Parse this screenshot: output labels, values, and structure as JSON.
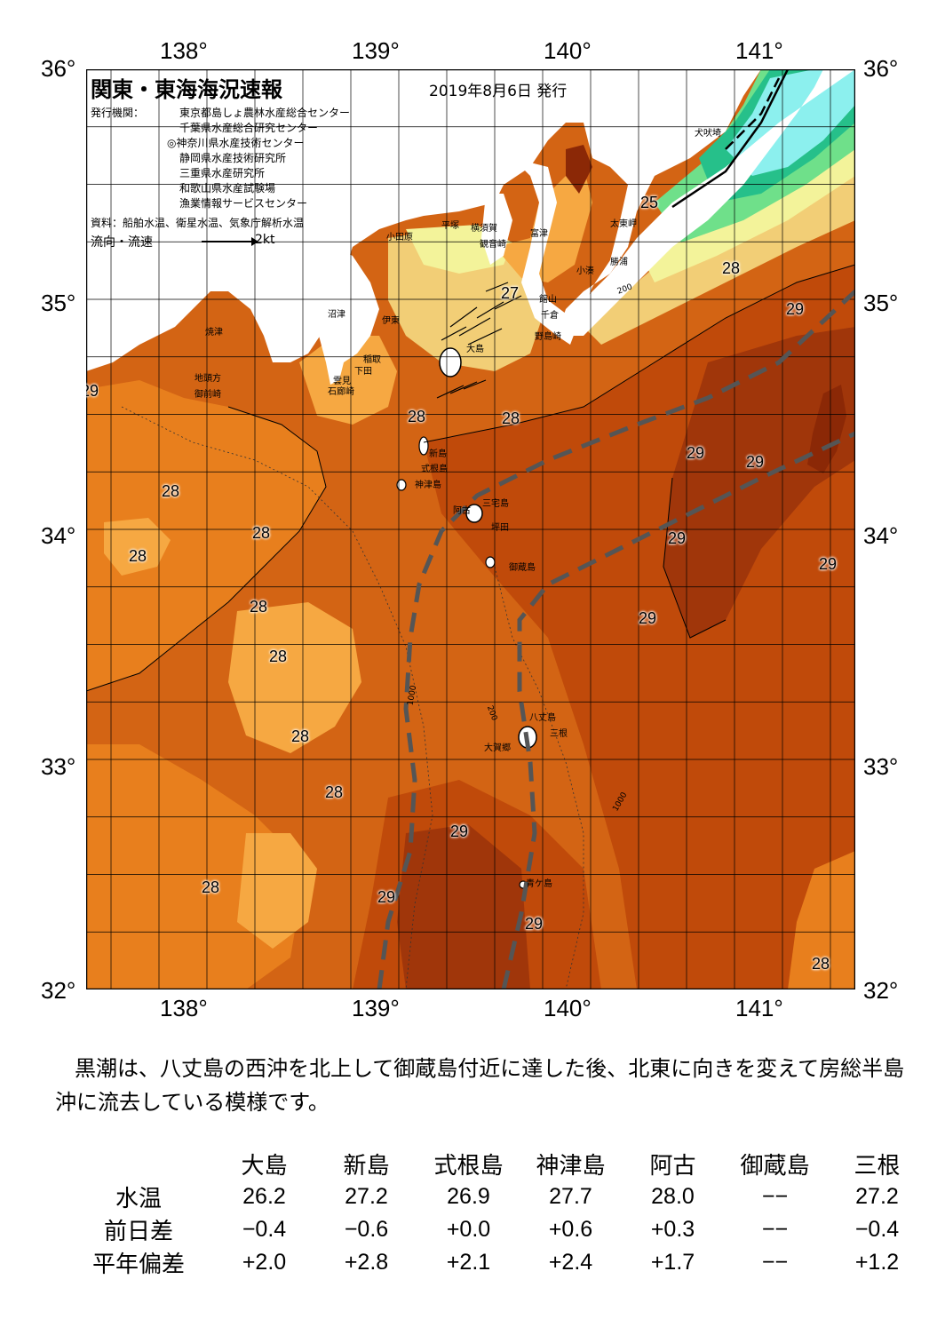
{
  "header": {
    "title": "関東・東海海況速報",
    "date": "2019年8月6日 発行",
    "agencies_label": "発行機関：",
    "agencies": [
      "東京都島しょ農林水産総合センター",
      "千葉県水産総合研究センター",
      "◎神奈川県水産技術センター",
      "静岡県水産技術研究所",
      "三重県水産研究所",
      "和歌山県水産試験場",
      "漁業情報サービスセンター"
    ],
    "source": "資料：船舶水温、衛星水温、気象庁解析水温",
    "flow_label": "流向・流速",
    "flow_scale": "2kt"
  },
  "axes": {
    "lon_labels": [
      "138°",
      "139°",
      "140°",
      "141°"
    ],
    "lat_labels": [
      "36°",
      "35°",
      "34°",
      "33°",
      "32°"
    ]
  },
  "colors": {
    "t24": "#26c08a",
    "t25": "#6fe08a",
    "t26": "#f3f39a",
    "t27": "#f2ce76",
    "t27_5": "#f6a842",
    "t28": "#e87f1d",
    "t28_5": "#d36414",
    "t29": "#c04a0a",
    "t29_5": "#a0360a",
    "t30": "#8b2806",
    "land": "#ffffff",
    "cold": "#8cf0ee",
    "kuroshio_axis": "#555555"
  },
  "places": [
    "犬吠埼",
    "太東岬",
    "勝浦",
    "小湊",
    "館山",
    "千倉",
    "野島崎",
    "富津",
    "観音崎",
    "横須賀",
    "平塚",
    "小田原",
    "沼津",
    "伊東",
    "焼津",
    "地頭方",
    "御前崎",
    "稲取",
    "下田",
    "雲見",
    "石廊崎",
    "大島",
    "新島",
    "式根島",
    "神津島",
    "三宅島",
    "阿古",
    "坪田",
    "御蔵島",
    "八丈島",
    "三根",
    "大賀郷",
    "青ケ島"
  ],
  "isotherm_labels": [
    "25",
    "27",
    "28",
    "28",
    "28",
    "28",
    "28",
    "28",
    "28",
    "28",
    "28",
    "28",
    "28",
    "28",
    "29",
    "29",
    "29",
    "29",
    "29",
    "29",
    "29",
    "29",
    "29",
    "29"
  ],
  "depth_labels": [
    "200",
    "1000"
  ],
  "summary": "黒潮は、八丈島の西沖を北上して御蔵島付近に達した後、北東に向きを変えて房総半島沖に流去している模様です。",
  "table": {
    "columns": [
      "大島",
      "新島",
      "式根島",
      "神津島",
      "阿古",
      "御蔵島",
      "三根"
    ],
    "rows": [
      {
        "label": "水温",
        "values": [
          "26.2",
          "27.2",
          "26.9",
          "27.7",
          "28.0",
          "−−",
          "27.2"
        ]
      },
      {
        "label": "前日差",
        "values": [
          "−0.4",
          "−0.6",
          "+0.0",
          "+0.6",
          "+0.3",
          "−−",
          "−0.4"
        ]
      },
      {
        "label": "平年偏差",
        "values": [
          "+2.0",
          "+2.8",
          "+2.1",
          "+2.4",
          "+1.7",
          "−−",
          "+1.2"
        ]
      }
    ]
  }
}
